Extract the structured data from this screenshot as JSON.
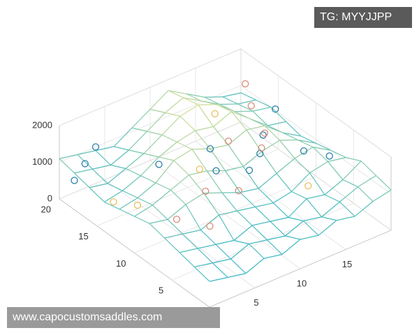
{
  "chart_data": {
    "type": "surface",
    "x": [
      0,
      2,
      4,
      6,
      8,
      10,
      12,
      14,
      16,
      18,
      20
    ],
    "y": [
      0,
      2,
      4,
      6,
      8,
      10,
      12,
      14,
      16,
      18,
      20
    ],
    "z": [
      [
        700,
        600,
        500,
        700,
        600,
        800,
        700,
        900,
        800,
        1000,
        1100
      ],
      [
        800,
        700,
        600,
        800,
        700,
        600,
        800,
        700,
        900,
        1100,
        1200
      ],
      [
        900,
        800,
        700,
        600,
        800,
        700,
        600,
        900,
        800,
        1000,
        1300
      ],
      [
        1000,
        900,
        800,
        1000,
        900,
        800,
        700,
        800,
        1100,
        1200,
        1100
      ],
      [
        1100,
        1000,
        1200,
        1300,
        1100,
        900,
        800,
        1000,
        1200,
        1300,
        1000
      ],
      [
        1000,
        1100,
        1300,
        1500,
        1400,
        1200,
        1100,
        1300,
        1400,
        1200,
        900
      ],
      [
        900,
        1000,
        1200,
        1600,
        1700,
        1500,
        1400,
        1600,
        1500,
        1100,
        800
      ],
      [
        800,
        900,
        1100,
        1400,
        1600,
        1700,
        1600,
        1800,
        1400,
        1000,
        900
      ],
      [
        900,
        800,
        1000,
        1200,
        1500,
        1800,
        1900,
        1700,
        1300,
        1100,
        1000
      ],
      [
        1000,
        900,
        800,
        1000,
        1300,
        1600,
        1800,
        1500,
        1200,
        1000,
        900
      ],
      [
        1100,
        1000,
        900,
        800,
        1100,
        1400,
        1700,
        1400,
        1100,
        900,
        800
      ]
    ],
    "xlim": [
      0,
      20
    ],
    "ylim": [
      0,
      20
    ],
    "zlim": [
      0,
      2000
    ],
    "xticks": [
      5,
      10,
      15
    ],
    "yticks": [
      5,
      10,
      15,
      20
    ],
    "zticks": [
      0,
      1000,
      2000
    ],
    "grid": true,
    "colormap": [
      "#3ab8c4",
      "#f0e48a"
    ],
    "scatter": [
      {
        "color": "#2a7fa8",
        "x": [
          0,
          2,
          4,
          6,
          9,
          11,
          13,
          15,
          17,
          19,
          18,
          10
        ],
        "y": [
          18,
          19,
          20,
          14,
          10,
          8,
          9,
          11,
          8,
          7,
          13,
          12
        ],
        "z": [
          800,
          900,
          1000,
          1200,
          1300,
          1400,
          1500,
          1500,
          1300,
          1100,
          1600,
          1500
        ]
      },
      {
        "color": "#d98a7a",
        "x": [
          3,
          5,
          7,
          9,
          12,
          14,
          16,
          17,
          18
        ],
        "y": [
          8,
          6,
          9,
          7,
          12,
          10,
          12,
          15,
          17
        ],
        "z": [
          900,
          800,
          1100,
          1200,
          1500,
          1400,
          1300,
          1500,
          1700
        ]
      },
      {
        "color": "#e8c060",
        "x": [
          1,
          2,
          8,
          13,
          15
        ],
        "y": [
          14,
          12,
          11,
          15,
          5
        ],
        "z": [
          700,
          800,
          1300,
          1700,
          1000
        ]
      }
    ],
    "badge": "TG: MYYJJPP",
    "footer": "www.capocustomsaddles.com"
  }
}
